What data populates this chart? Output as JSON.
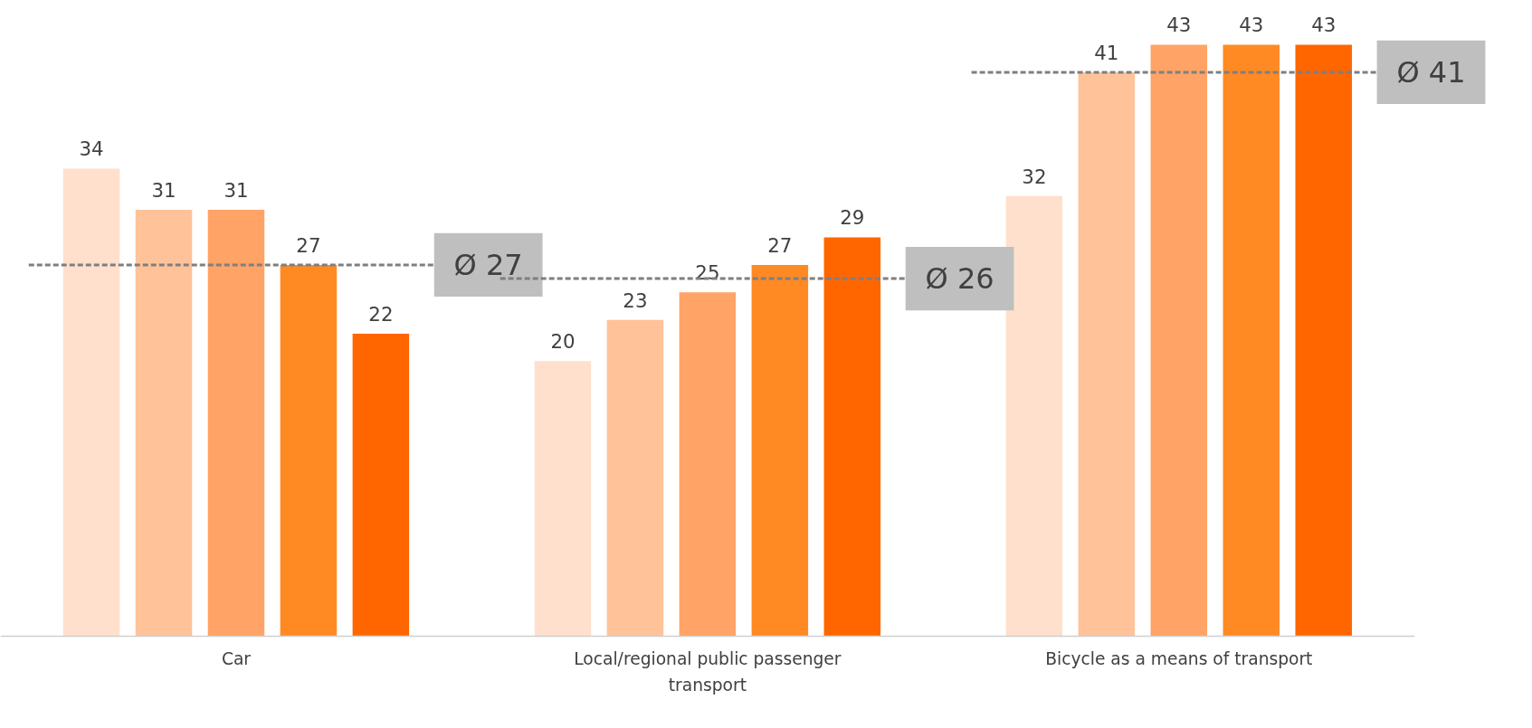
{
  "chart_data": {
    "type": "bar",
    "categories": [
      "Car",
      "Local/regional public passenger transport",
      "Bicycle as a means of transport"
    ],
    "series": [
      {
        "color": "#ffe0cc",
        "values": [
          34,
          20,
          32
        ]
      },
      {
        "color": "#ffc299",
        "values": [
          31,
          23,
          41
        ]
      },
      {
        "color": "#ffa366",
        "values": [
          31,
          25,
          43
        ]
      },
      {
        "color": "#ff8a24",
        "values": [
          27,
          27,
          43
        ]
      },
      {
        "color": "#ff6600",
        "values": [
          22,
          29,
          43
        ]
      }
    ],
    "data_labels": true,
    "grid": false,
    "ref_lines": [
      {
        "axis": "y",
        "value": 27,
        "label": "Ø 27",
        "color": "#7f7f7f",
        "line_style": "dashed"
      },
      {
        "axis": "y",
        "value": 26,
        "label": "Ø 26",
        "color": "#7f7f7f",
        "line_style": "dashed"
      },
      {
        "axis": "y",
        "value": 41,
        "label": "Ø 41",
        "color": "#7f7f7f",
        "line_style": "dashed"
      }
    ]
  }
}
